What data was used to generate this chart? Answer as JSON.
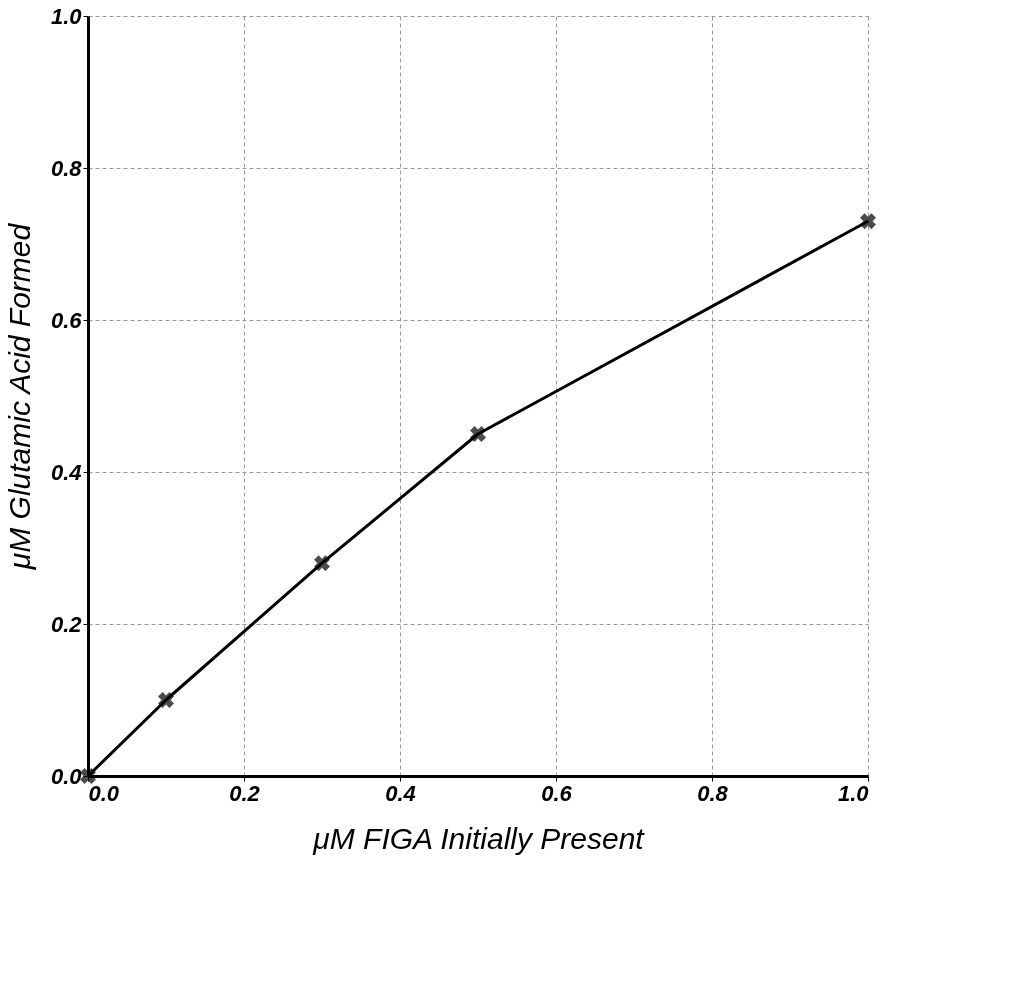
{
  "chart_data": {
    "type": "line",
    "xlabel": "μM FIGA Initially Present",
    "ylabel": "μM Glutamic Acid Formed",
    "x": [
      0.0,
      0.1,
      0.3,
      0.5,
      1.0
    ],
    "series": [
      {
        "color": "#000000",
        "values": [
          0.0,
          0.1,
          0.28,
          0.45,
          0.73
        ]
      }
    ],
    "xlim": [
      0.0,
      1.0
    ],
    "ylim": [
      0.0,
      1.0
    ],
    "xticks": [
      {
        "value": 0,
        "label": "0.0"
      },
      0.2,
      0.4,
      0.6,
      0.8,
      {
        "value": 1,
        "label": "1.0"
      }
    ],
    "yticks": [
      {
        "value": 0,
        "label": "0.0"
      },
      0.2,
      0.4,
      0.6,
      0.8,
      {
        "value": 1,
        "label": "1.0"
      }
    ],
    "grid": true,
    "marker": "cross",
    "line_style": "solid"
  }
}
